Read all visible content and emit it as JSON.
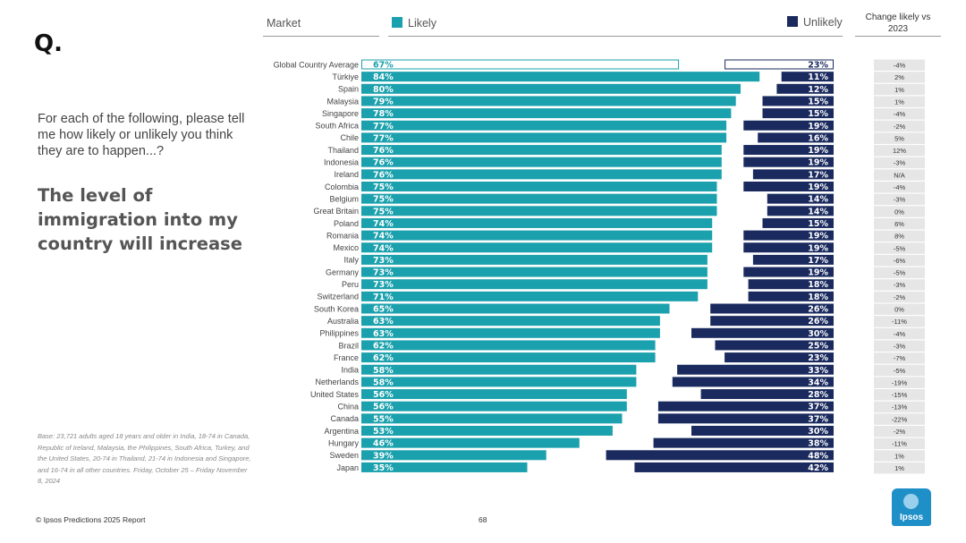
{
  "question_mark": "Q.",
  "question": "For each of the following, please tell me how likely or unlikely you think they are to happen...?",
  "statement": "The level of immigration into my country will increase",
  "base_note": "Base: 23,721 adults aged 18 years and older in India, 18-74 in Canada, Republic of Ireland, Malaysia, the Philippines, South Africa, Turkey, and the United States, 20-74 in Thailand, 21-74 in Indonesia and Singapore, and 16-74 in all other countries. Friday, October 25 – Friday November 8, 2024",
  "footer": "© Ipsos Predictions 2025 Report",
  "page_number": "68",
  "logo_text": "Ipsos",
  "headers": {
    "market": "Market",
    "likely": "Likely",
    "unlikely": "Unlikely",
    "change": "Change likely vs 2023"
  },
  "colors": {
    "likely": "#1ba1ad",
    "unlikely": "#1a2a5e",
    "change_bg": "#e6e6e6"
  },
  "chart_data": {
    "type": "bar",
    "title": "The level of immigration into my country will increase",
    "series": [
      {
        "name": "Likely",
        "values": [
          67,
          84,
          80,
          79,
          78,
          77,
          77,
          76,
          76,
          76,
          75,
          75,
          75,
          74,
          74,
          74,
          73,
          73,
          73,
          71,
          65,
          63,
          63,
          62,
          62,
          58,
          58,
          56,
          56,
          55,
          53,
          46,
          39,
          35
        ]
      },
      {
        "name": "Unlikely",
        "values": [
          23,
          11,
          12,
          15,
          15,
          19,
          16,
          19,
          19,
          17,
          19,
          14,
          14,
          15,
          19,
          19,
          17,
          19,
          18,
          18,
          26,
          26,
          30,
          25,
          23,
          33,
          34,
          28,
          37,
          37,
          30,
          38,
          48,
          42
        ]
      }
    ],
    "categories": [
      "Global Country Average",
      "Türkiye",
      "Spain",
      "Malaysia",
      "Singapore",
      "South Africa",
      "Chile",
      "Thailand",
      "Indonesia",
      "Ireland",
      "Colombia",
      "Belgium",
      "Great Britain",
      "Poland",
      "Romania",
      "Mexico",
      "Italy",
      "Germany",
      "Peru",
      "Switzerland",
      "South Korea",
      "Australia",
      "Philippines",
      "Brazil",
      "France",
      "India",
      "Netherlands",
      "United States",
      "China",
      "Canada",
      "Argentina",
      "Hungary",
      "Sweden",
      "Japan"
    ],
    "change_vs_2023": [
      "-4%",
      "2%",
      "1%",
      "1%",
      "-4%",
      "-2%",
      "5%",
      "12%",
      "-3%",
      "N/A",
      "-4%",
      "-3%",
      "0%",
      "6%",
      "8%",
      "-5%",
      "-6%",
      "-5%",
      "-3%",
      "-2%",
      "0%",
      "-11%",
      "-4%",
      "-3%",
      "-7%",
      "-5%",
      "-19%",
      "-15%",
      "-13%",
      "-22%",
      "-2%",
      "-11%",
      "1%",
      "1%"
    ],
    "xlim": [
      0,
      100
    ]
  }
}
